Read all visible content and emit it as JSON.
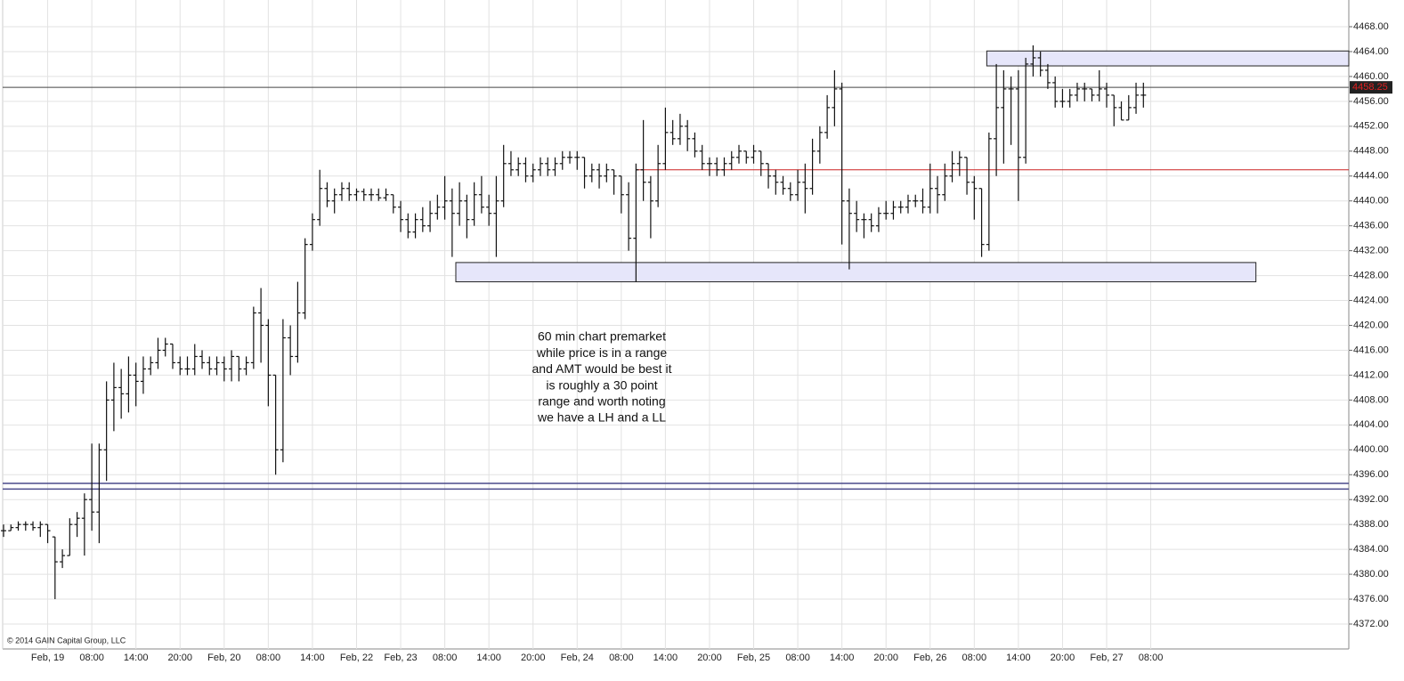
{
  "chart_data": {
    "type": "ohlc",
    "annotation": [
      "60 min chart premarket",
      "while price is in a range",
      "and AMT would be best  it",
      "is roughly a 30 point",
      "range and worth noting",
      "we have a LH and a LL"
    ],
    "copyright": "© 2014 GAIN Capital Group, LLC",
    "color": "#111111",
    "grid": true,
    "ylim": [
      4368,
      4472
    ],
    "yticks": [
      {
        "value": 4372,
        "label": "4372.00"
      },
      {
        "value": 4376,
        "label": "4376.00"
      },
      {
        "value": 4380,
        "label": "4380.00"
      },
      {
        "value": 4384,
        "label": "4384.00"
      },
      {
        "value": 4388,
        "label": "4388.00"
      },
      {
        "value": 4392,
        "label": "4392.00"
      },
      {
        "value": 4396,
        "label": "4396.00"
      },
      {
        "value": 4400,
        "label": "4400.00"
      },
      {
        "value": 4404,
        "label": "4404.00"
      },
      {
        "value": 4408,
        "label": "4408.00"
      },
      {
        "value": 4412,
        "label": "4412.00"
      },
      {
        "value": 4416,
        "label": "4416.00"
      },
      {
        "value": 4420,
        "label": "4420.00"
      },
      {
        "value": 4424,
        "label": "4424.00"
      },
      {
        "value": 4428,
        "label": "4428.00"
      },
      {
        "value": 4432,
        "label": "4432.00"
      },
      {
        "value": 4436,
        "label": "4436.00"
      },
      {
        "value": 4440,
        "label": "4440.00"
      },
      {
        "value": 4444,
        "label": "4444.00"
      },
      {
        "value": 4448,
        "label": "4448.00"
      },
      {
        "value": 4452,
        "label": "4452.00"
      },
      {
        "value": 4456,
        "label": "4456.00"
      },
      {
        "value": 4460,
        "label": "4460.00"
      },
      {
        "value": 4464,
        "label": "4464.00"
      },
      {
        "value": 4468,
        "label": "4468.00"
      }
    ],
    "last_price": 4458.25,
    "levels": [
      {
        "value": 4394.6,
        "color": "#4a4a8a"
      },
      {
        "value": 4393.7,
        "color": "#4a4a8a"
      }
    ],
    "red_line": {
      "value": 4445,
      "x0": 86,
      "color": "#cc2222"
    },
    "zones": [
      {
        "x0": 61.5,
        "x1": 170.3,
        "y0": 4427,
        "y1": 4430.1
      },
      {
        "x0": 133.7,
        "x1": 183,
        "y0": 4461.7,
        "y1": 4464.1
      }
    ],
    "categories": [
      null,
      null,
      null,
      null,
      null,
      null,
      "Feb, 19",
      null,
      null,
      null,
      null,
      null,
      "08:00",
      null,
      null,
      null,
      null,
      null,
      "14:00",
      null,
      null,
      null,
      null,
      null,
      "20:00",
      null,
      null,
      null,
      null,
      null,
      "Feb, 20",
      null,
      null,
      null,
      null,
      null,
      "08:00",
      null,
      null,
      null,
      null,
      null,
      "14:00",
      null,
      null,
      null,
      null,
      null,
      "Feb, 22",
      null,
      null,
      null,
      null,
      null,
      "Feb, 23",
      null,
      null,
      null,
      null,
      null,
      "08:00",
      null,
      null,
      null,
      null,
      null,
      "14:00",
      null,
      null,
      null,
      null,
      null,
      "20:00",
      null,
      null,
      null,
      null,
      null,
      "Feb, 24",
      null,
      null,
      null,
      null,
      null,
      "08:00",
      null,
      null,
      null,
      null,
      null,
      "14:00",
      null,
      null,
      null,
      null,
      null,
      "20:00",
      null,
      null,
      null,
      null,
      null,
      "Feb, 25",
      null,
      null,
      null,
      null,
      null,
      "08:00",
      null,
      null,
      null,
      null,
      null,
      "14:00",
      null,
      null,
      null,
      null,
      null,
      "20:00",
      null,
      null,
      null,
      null,
      null,
      "Feb, 26",
      null,
      null,
      null,
      null,
      null,
      "08:00",
      null,
      null,
      null,
      null,
      null,
      "14:00",
      null,
      null,
      null,
      null,
      null,
      "20:00",
      null,
      null,
      null,
      null,
      null,
      "Feb, 27",
      null,
      null,
      null,
      null,
      null,
      "08:00"
    ],
    "ohlc": [
      [
        4387,
        4388,
        4386,
        4387
      ],
      [
        4387,
        4388,
        4387,
        4387.5
      ],
      [
        4387.5,
        4388.5,
        4387,
        4388
      ],
      [
        4388,
        4388.5,
        4387,
        4388
      ],
      [
        4388,
        4388.5,
        4387,
        4387.5
      ],
      [
        4387.5,
        4388.5,
        4386,
        4388
      ],
      [
        4388,
        4388,
        4385,
        4387
      ],
      [
        4386,
        4386,
        4376,
        4382
      ],
      [
        4382,
        4384,
        4381,
        4383
      ],
      [
        4383,
        4389,
        4383,
        4388
      ],
      [
        4388,
        4390,
        4386,
        4389
      ],
      [
        4389,
        4393,
        4383,
        4392
      ],
      [
        4392,
        4401,
        4387,
        4390
      ],
      [
        4390,
        4401,
        4385,
        4400
      ],
      [
        4400,
        4411,
        4395,
        4408
      ],
      [
        4408,
        4414,
        4403,
        4410
      ],
      [
        4410,
        4413,
        4405,
        4409
      ],
      [
        4409,
        4415,
        4406,
        4412
      ],
      [
        4412,
        4414,
        4407,
        4411
      ],
      [
        4411,
        4415,
        4409,
        4413
      ],
      [
        4413,
        4415,
        4412,
        4414
      ],
      [
        4414,
        4418,
        4413,
        4416
      ],
      [
        4416,
        4418,
        4415,
        4417
      ],
      [
        4417,
        4417,
        4413,
        4414
      ],
      [
        4414,
        4415,
        4412,
        4413
      ],
      [
        4413,
        4415,
        4412,
        4413
      ],
      [
        4413,
        4417,
        4412,
        4415
      ],
      [
        4415,
        4416,
        4413,
        4414
      ],
      [
        4414,
        4415,
        4412,
        4413
      ],
      [
        4413,
        4415,
        4412,
        4414
      ],
      [
        4414,
        4415,
        4411,
        4413
      ],
      [
        4413,
        4416,
        4411,
        4415
      ],
      [
        4415,
        4415,
        4411,
        4413
      ],
      [
        4413,
        4415,
        4412,
        4414
      ],
      [
        4414,
        4423,
        4413,
        4422
      ],
      [
        4422,
        4426,
        4414,
        4420
      ],
      [
        4420,
        4421,
        4407,
        4412
      ],
      [
        4412,
        4412,
        4396,
        4400
      ],
      [
        4400,
        4421,
        4398,
        4418
      ],
      [
        4418,
        4420,
        4412,
        4415
      ],
      [
        4415,
        4427,
        4414,
        4422
      ],
      [
        4422,
        4434,
        4421,
        4433
      ],
      [
        4433,
        4438,
        4432,
        4437
      ],
      [
        4437,
        4445,
        4436,
        4442
      ],
      [
        4442,
        4443,
        4439,
        4440
      ],
      [
        4440,
        4442,
        4438,
        4441
      ],
      [
        4441,
        4443,
        4440,
        4442
      ],
      [
        4442,
        4443,
        4440,
        4441
      ],
      [
        4441,
        4442,
        4440,
        4441.5
      ],
      [
        4441.5,
        4442,
        4440,
        4441
      ],
      [
        4441,
        4442,
        4440,
        4441
      ],
      [
        4441,
        4442,
        4440,
        4440.5
      ],
      [
        4440.5,
        4442,
        4440,
        4441
      ],
      [
        4441,
        4441,
        4438,
        4439
      ],
      [
        4439,
        4440,
        4435,
        4437
      ],
      [
        4437,
        4438,
        4434,
        4435
      ],
      [
        4435,
        4438,
        4434,
        4437
      ],
      [
        4437,
        4439,
        4435,
        4436
      ],
      [
        4436,
        4440,
        4435,
        4438
      ],
      [
        4438,
        4441,
        4437,
        4439
      ],
      [
        4439,
        4444,
        4437,
        4440
      ],
      [
        4440,
        4442,
        4431,
        4438
      ],
      [
        4438,
        4443,
        4436,
        4440
      ],
      [
        4440,
        4441,
        4434,
        4437
      ],
      [
        4437,
        4443,
        4436,
        4441
      ],
      [
        4441,
        4444,
        4438,
        4439
      ],
      [
        4439,
        4441,
        4436,
        4438
      ],
      [
        4438,
        4444,
        4431,
        4440
      ],
      [
        4440,
        4449,
        4439,
        4446
      ],
      [
        4446,
        4448,
        4444,
        4445
      ],
      [
        4445,
        4447,
        4444,
        4446
      ],
      [
        4446,
        4447,
        4443,
        4444
      ],
      [
        4444,
        4446,
        4443,
        4445
      ],
      [
        4445,
        4447,
        4444,
        4446
      ],
      [
        4446,
        4447,
        4444,
        4445
      ],
      [
        4445,
        4447,
        4444,
        4446
      ],
      [
        4446,
        4448,
        4445,
        4447
      ],
      [
        4447,
        4448,
        4446,
        4447
      ],
      [
        4447,
        4448,
        4445,
        4447
      ],
      [
        4447,
        4447,
        4442,
        4444
      ],
      [
        4444,
        4446,
        4443,
        4445
      ],
      [
        4445,
        4446,
        4442,
        4444
      ],
      [
        4444,
        4446,
        4443,
        4445
      ],
      [
        4445,
        4445,
        4441,
        4444
      ],
      [
        4444,
        4444,
        4438,
        4441
      ],
      [
        4441,
        4443,
        4432,
        4434
      ],
      [
        4434,
        4446,
        4427,
        4445
      ],
      [
        4445,
        4453,
        4440,
        4443
      ],
      [
        4443,
        4444,
        4434,
        4440
      ],
      [
        4440,
        4449,
        4439,
        4446
      ],
      [
        4446,
        4455,
        4445,
        4451
      ],
      [
        4451,
        4453,
        4449,
        4450
      ],
      [
        4450,
        4454,
        4449,
        4452
      ],
      [
        4452,
        4453,
        4448,
        4450
      ],
      [
        4450,
        4451,
        4447,
        4448
      ],
      [
        4448,
        4449,
        4445,
        4446
      ],
      [
        4446,
        4447,
        4444,
        4446
      ],
      [
        4446,
        4447,
        4444,
        4445
      ],
      [
        4445,
        4447,
        4444,
        4446
      ],
      [
        4446,
        4448,
        4445,
        4447
      ],
      [
        4447,
        4449,
        4446,
        4448
      ],
      [
        4448,
        4448,
        4446,
        4447
      ],
      [
        4447,
        4449,
        4446,
        4448
      ],
      [
        4448,
        4448,
        4444,
        4446
      ],
      [
        4446,
        4446,
        4442,
        4444
      ],
      [
        4444,
        4445,
        4441,
        4443
      ],
      [
        4443,
        4444,
        4441,
        4442
      ],
      [
        4442,
        4443,
        4440,
        4441
      ],
      [
        4441,
        4445,
        4440,
        4443
      ],
      [
        4443,
        4446,
        4438,
        4442
      ],
      [
        4442,
        4450,
        4441,
        4448
      ],
      [
        4448,
        4452,
        4446,
        4451
      ],
      [
        4451,
        4457,
        4450,
        4455
      ],
      [
        4455,
        4461,
        4452,
        4458
      ],
      [
        4458,
        4459,
        4433,
        4440
      ],
      [
        4440,
        4442,
        4429,
        4438
      ],
      [
        4438,
        4440,
        4435,
        4437
      ],
      [
        4437,
        4438,
        4434,
        4437
      ],
      [
        4437,
        4438,
        4435,
        4436
      ],
      [
        4436,
        4439,
        4435,
        4438
      ],
      [
        4438,
        4440,
        4437,
        4438
      ],
      [
        4438,
        4440,
        4437,
        4439
      ],
      [
        4439,
        4440,
        4438,
        4439
      ],
      [
        4439,
        4441,
        4438,
        4440
      ],
      [
        4440,
        4441,
        4439,
        4440
      ],
      [
        4440,
        4442,
        4438,
        4439
      ],
      [
        4439,
        4446,
        4438,
        4442
      ],
      [
        4442,
        4444,
        4438,
        4441
      ],
      [
        4441,
        4446,
        4440,
        4444
      ],
      [
        4444,
        4448,
        4443,
        4446
      ],
      [
        4446,
        4448,
        4444,
        4447
      ],
      [
        4447,
        4447,
        4441,
        4443
      ],
      [
        4443,
        4444,
        4437,
        4442
      ],
      [
        4442,
        4442,
        4431,
        4433
      ],
      [
        4433,
        4451,
        4432,
        4450
      ],
      [
        4450,
        4462,
        4444,
        4455
      ],
      [
        4455,
        4461,
        4446,
        4458
      ],
      [
        4458,
        4460,
        4449,
        4458
      ],
      [
        4458,
        4461,
        4440,
        4447
      ],
      [
        4447,
        4463,
        4446,
        4462
      ],
      [
        4462,
        4465,
        4460,
        4463
      ],
      [
        4463,
        4464,
        4460,
        4461
      ],
      [
        4461,
        4462,
        4458,
        4459
      ],
      [
        4459,
        4460,
        4455,
        4456
      ],
      [
        4456,
        4458,
        4455,
        4456
      ],
      [
        4456,
        4458,
        4455,
        4457
      ],
      [
        4457,
        4459,
        4456,
        4458
      ],
      [
        4458,
        4459,
        4456,
        4458
      ],
      [
        4458,
        4458,
        4456,
        4457
      ],
      [
        4457,
        4461,
        4456,
        4458
      ],
      [
        4458,
        4459,
        4455,
        4457
      ],
      [
        4457,
        4457,
        4452,
        4455
      ],
      [
        4455,
        4456,
        4453,
        4453
      ],
      [
        4453,
        4457,
        4453,
        4455
      ],
      [
        4455,
        4459,
        4454,
        4457
      ],
      [
        4457,
        4459,
        4455,
        4457
      ],
      null
    ]
  }
}
